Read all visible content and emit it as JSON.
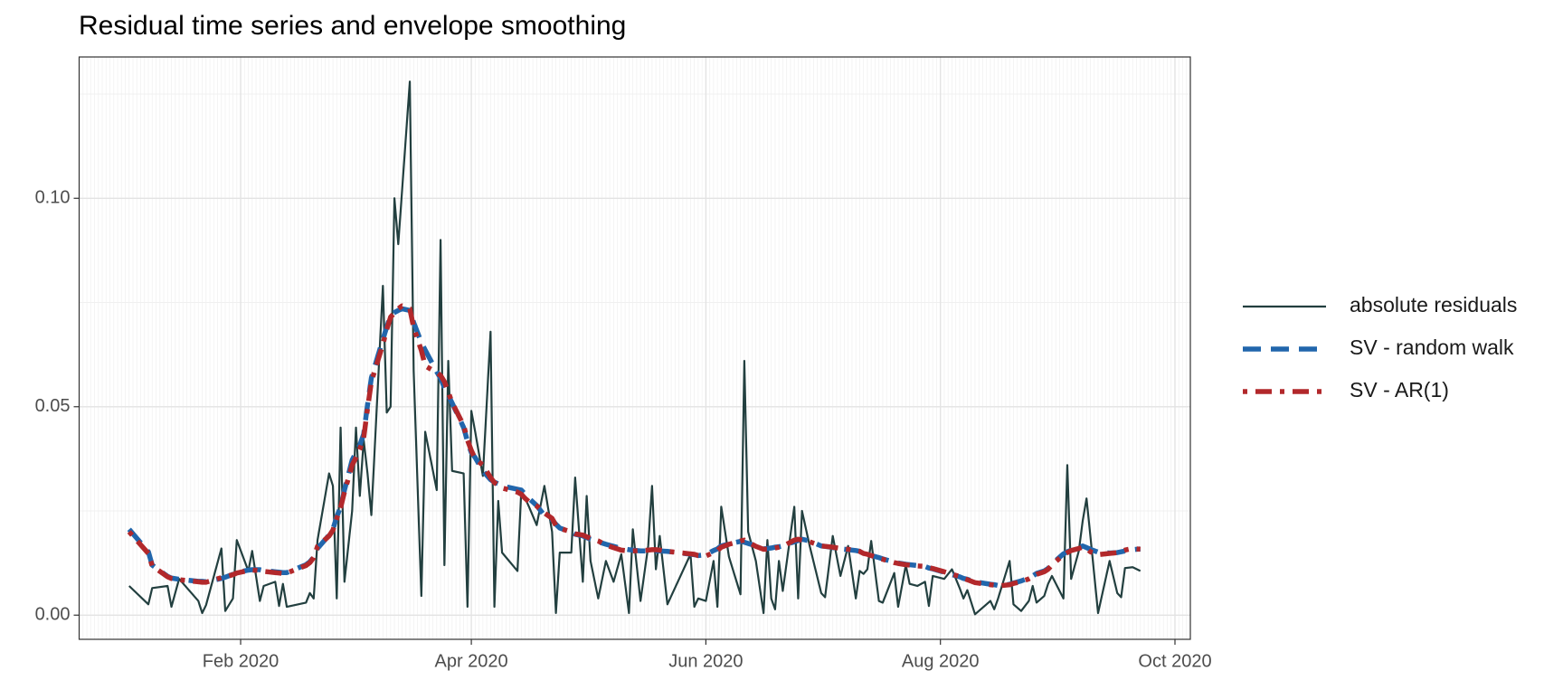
{
  "chart_data": {
    "type": "line",
    "title": "Residual time series and envelope smoothing",
    "x": [
      "2020-01-03",
      "2020-01-08",
      "2020-01-09",
      "2020-01-13",
      "2020-01-14",
      "2020-01-16",
      "2020-01-21",
      "2020-01-22",
      "2020-01-23",
      "2020-01-27",
      "2020-01-28",
      "2020-01-30",
      "2020-01-31",
      "2020-02-03",
      "2020-02-04",
      "2020-02-06",
      "2020-02-07",
      "2020-02-10",
      "2020-02-11",
      "2020-02-12",
      "2020-02-13",
      "2020-02-18",
      "2020-02-19",
      "2020-02-20",
      "2020-02-21",
      "2020-02-24",
      "2020-02-25",
      "2020-02-26",
      "2020-02-27",
      "2020-02-28",
      "2020-03-01",
      "2020-03-02",
      "2020-03-03",
      "2020-03-04",
      "2020-03-05",
      "2020-03-06",
      "2020-03-09",
      "2020-03-10",
      "2020-03-11",
      "2020-03-12",
      "2020-03-13",
      "2020-03-14",
      "2020-03-16",
      "2020-03-17",
      "2020-03-19",
      "2020-03-20",
      "2020-03-23",
      "2020-03-24",
      "2020-03-25",
      "2020-03-26",
      "2020-03-27",
      "2020-03-30",
      "2020-03-31",
      "2020-04-01",
      "2020-04-02",
      "2020-04-04",
      "2020-04-06",
      "2020-04-07",
      "2020-04-08",
      "2020-04-09",
      "2020-04-13",
      "2020-04-14",
      "2020-04-15",
      "2020-04-16",
      "2020-04-18",
      "2020-04-20",
      "2020-04-22",
      "2020-04-23",
      "2020-04-24",
      "2020-04-27",
      "2020-04-28",
      "2020-04-30",
      "2020-05-01",
      "2020-05-02",
      "2020-05-04",
      "2020-05-06",
      "2020-05-08",
      "2020-05-10",
      "2020-05-12",
      "2020-05-13",
      "2020-05-15",
      "2020-05-17",
      "2020-05-18",
      "2020-05-19",
      "2020-05-20",
      "2020-05-22",
      "2020-05-28",
      "2020-05-29",
      "2020-05-30",
      "2020-06-01",
      "2020-06-03",
      "2020-06-04",
      "2020-06-05",
      "2020-06-07",
      "2020-06-09",
      "2020-06-10",
      "2020-06-11",
      "2020-06-12",
      "2020-06-14",
      "2020-06-16",
      "2020-06-17",
      "2020-06-18",
      "2020-06-19",
      "2020-06-20",
      "2020-06-21",
      "2020-06-22",
      "2020-06-24",
      "2020-06-25",
      "2020-06-26",
      "2020-06-28",
      "2020-07-01",
      "2020-07-02",
      "2020-07-04",
      "2020-07-06",
      "2020-07-08",
      "2020-07-10",
      "2020-07-11",
      "2020-07-12",
      "2020-07-13",
      "2020-07-14",
      "2020-07-16",
      "2020-07-17",
      "2020-07-20",
      "2020-07-21",
      "2020-07-23",
      "2020-07-24",
      "2020-07-26",
      "2020-07-28",
      "2020-07-29",
      "2020-07-30",
      "2020-08-02",
      "2020-08-04",
      "2020-08-06",
      "2020-08-07",
      "2020-08-08",
      "2020-08-10",
      "2020-08-14",
      "2020-08-15",
      "2020-08-16",
      "2020-08-19",
      "2020-08-20",
      "2020-08-22",
      "2020-08-24",
      "2020-08-25",
      "2020-08-26",
      "2020-08-28",
      "2020-08-29",
      "2020-08-30",
      "2020-09-02",
      "2020-09-03",
      "2020-09-04",
      "2020-09-06",
      "2020-09-07",
      "2020-09-08",
      "2020-09-09",
      "2020-09-11",
      "2020-09-14",
      "2020-09-16",
      "2020-09-17",
      "2020-09-18",
      "2020-09-20",
      "2020-09-22"
    ],
    "series": [
      {
        "name": "absolute residuals",
        "color": "#223f3f",
        "linestyle": "solid",
        "values": [
          0.007,
          0.0026,
          0.0065,
          0.007,
          0.002,
          0.0087,
          0.0034,
          0.0005,
          0.0024,
          0.016,
          0.001,
          0.004,
          0.018,
          0.0106,
          0.0154,
          0.0034,
          0.007,
          0.008,
          0.0022,
          0.0075,
          0.002,
          0.003,
          0.0053,
          0.004,
          0.018,
          0.034,
          0.031,
          0.004,
          0.045,
          0.008,
          0.025,
          0.045,
          0.0286,
          0.042,
          0.034,
          0.024,
          0.079,
          0.0486,
          0.05,
          0.1,
          0.089,
          0.102,
          0.128,
          0.0586,
          0.0046,
          0.044,
          0.03,
          0.09,
          0.012,
          0.061,
          0.0346,
          0.034,
          0.002,
          0.049,
          0.044,
          0.0334,
          0.068,
          0.002,
          0.0274,
          0.015,
          0.0106,
          0.03,
          0.028,
          0.026,
          0.0216,
          0.031,
          0.02,
          0.0005,
          0.015,
          0.015,
          0.033,
          0.008,
          0.0286,
          0.013,
          0.004,
          0.013,
          0.008,
          0.0146,
          0.0005,
          0.0206,
          0.0034,
          0.0166,
          0.031,
          0.011,
          0.019,
          0.0026,
          0.0146,
          0.002,
          0.004,
          0.0034,
          0.013,
          0.002,
          0.026,
          0.014,
          0.008,
          0.005,
          0.061,
          0.02,
          0.013,
          0.0005,
          0.018,
          0.004,
          0.0014,
          0.013,
          0.0058,
          0.0125,
          0.026,
          0.004,
          0.025,
          0.0166,
          0.0053,
          0.0043,
          0.019,
          0.0094,
          0.0166,
          0.004,
          0.0106,
          0.0099,
          0.011,
          0.0178,
          0.0034,
          0.003,
          0.0101,
          0.002,
          0.012,
          0.0075,
          0.007,
          0.008,
          0.0022,
          0.0094,
          0.0087,
          0.011,
          0.0065,
          0.004,
          0.006,
          0.0002,
          0.0034,
          0.0014,
          0.004,
          0.013,
          0.0026,
          0.001,
          0.0034,
          0.007,
          0.003,
          0.0046,
          0.0075,
          0.0094,
          0.004,
          0.036,
          0.0087,
          0.0154,
          0.0226,
          0.028,
          0.019,
          0.0005,
          0.013,
          0.0053,
          0.0043,
          0.0113,
          0.0115,
          0.0106
        ]
      },
      {
        "name": "SV - random walk",
        "color": "#2166ac",
        "linestyle": "dashed",
        "values": [
          0.0206,
          0.0152,
          0.012,
          0.0093,
          0.0089,
          0.0086,
          0.0081,
          0.0081,
          0.008,
          0.0088,
          0.0091,
          0.0098,
          0.0102,
          0.0108,
          0.0109,
          0.0109,
          0.0107,
          0.0104,
          0.0103,
          0.0102,
          0.0102,
          0.0121,
          0.0128,
          0.0139,
          0.016,
          0.0192,
          0.0206,
          0.0236,
          0.026,
          0.03,
          0.0372,
          0.039,
          0.0408,
          0.0434,
          0.0504,
          0.0569,
          0.0662,
          0.0691,
          0.072,
          0.0726,
          0.0731,
          0.0735,
          0.0731,
          0.0702,
          0.0654,
          0.0636,
          0.0584,
          0.0568,
          0.0546,
          0.0527,
          0.0509,
          0.045,
          0.0417,
          0.039,
          0.0378,
          0.0346,
          0.0325,
          0.0319,
          0.0315,
          0.031,
          0.0302,
          0.03,
          0.029,
          0.028,
          0.0263,
          0.0239,
          0.0229,
          0.0218,
          0.0209,
          0.0199,
          0.0194,
          0.019,
          0.0186,
          0.0182,
          0.0176,
          0.017,
          0.0165,
          0.016,
          0.0157,
          0.0156,
          0.0154,
          0.0154,
          0.0154,
          0.0154,
          0.0154,
          0.0153,
          0.0146,
          0.0145,
          0.0143,
          0.0145,
          0.0155,
          0.0159,
          0.0166,
          0.0171,
          0.0175,
          0.0177,
          0.0175,
          0.0172,
          0.0166,
          0.0159,
          0.016,
          0.0161,
          0.0163,
          0.0164,
          0.0166,
          0.017,
          0.0176,
          0.0179,
          0.0182,
          0.0178,
          0.0166,
          0.0165,
          0.0162,
          0.0159,
          0.0157,
          0.0155,
          0.0153,
          0.0147,
          0.0145,
          0.0143,
          0.0138,
          0.0135,
          0.0127,
          0.0125,
          0.0122,
          0.0121,
          0.0119,
          0.0117,
          0.0113,
          0.0111,
          0.0103,
          0.0097,
          0.0092,
          0.0088,
          0.0086,
          0.008,
          0.0074,
          0.0073,
          0.0071,
          0.0074,
          0.0077,
          0.0082,
          0.0089,
          0.0094,
          0.01,
          0.0106,
          0.0112,
          0.0123,
          0.0147,
          0.0152,
          0.0156,
          0.0162,
          0.0166,
          0.0162,
          0.0158,
          0.0151,
          0.0149,
          0.015,
          0.0152,
          0.0154,
          0.0157,
          0.0159
        ]
      },
      {
        "name": "SV - AR(1)",
        "color": "#b2282b",
        "linestyle": "dotdash",
        "values": [
          0.02,
          0.0148,
          0.0118,
          0.0092,
          0.0088,
          0.0085,
          0.008,
          0.0079,
          0.0079,
          0.009,
          0.0092,
          0.0097,
          0.0101,
          0.0107,
          0.0108,
          0.0107,
          0.0105,
          0.0102,
          0.0101,
          0.01,
          0.0101,
          0.0119,
          0.0126,
          0.0138,
          0.0165,
          0.019,
          0.0204,
          0.0232,
          0.0258,
          0.0295,
          0.036,
          0.0378,
          0.0398,
          0.0425,
          0.0495,
          0.056,
          0.065,
          0.0685,
          0.0715,
          0.0725,
          0.0735,
          0.0742,
          0.0735,
          0.069,
          0.0635,
          0.0598,
          0.0582,
          0.0575,
          0.056,
          0.0535,
          0.051,
          0.0455,
          0.042,
          0.0395,
          0.0375,
          0.036,
          0.033,
          0.0318,
          0.0312,
          0.0305,
          0.0295,
          0.029,
          0.028,
          0.0272,
          0.0262,
          0.0245,
          0.0232,
          0.0215,
          0.0208,
          0.02,
          0.0195,
          0.0192,
          0.0188,
          0.0184,
          0.0178,
          0.0168,
          0.0162,
          0.0156,
          0.0154,
          0.0154,
          0.0155,
          0.0156,
          0.0157,
          0.0157,
          0.0156,
          0.0153,
          0.0147,
          0.0146,
          0.0143,
          0.0142,
          0.015,
          0.0155,
          0.0163,
          0.017,
          0.0175,
          0.0178,
          0.018,
          0.0175,
          0.0165,
          0.0158,
          0.0158,
          0.0159,
          0.0161,
          0.0163,
          0.0165,
          0.017,
          0.018,
          0.0182,
          0.018,
          0.0176,
          0.0166,
          0.0165,
          0.0163,
          0.016,
          0.0158,
          0.0155,
          0.0153,
          0.0148,
          0.0146,
          0.0143,
          0.0136,
          0.0134,
          0.0126,
          0.0124,
          0.0121,
          0.012,
          0.0118,
          0.0117,
          0.0114,
          0.0112,
          0.0104,
          0.0098,
          0.0093,
          0.0088,
          0.0085,
          0.0078,
          0.0073,
          0.0072,
          0.007,
          0.0073,
          0.0076,
          0.008,
          0.0087,
          0.0092,
          0.0098,
          0.0104,
          0.011,
          0.012,
          0.0145,
          0.015,
          0.0155,
          0.016,
          0.0163,
          0.016,
          0.0152,
          0.0145,
          0.0148,
          0.015,
          0.0153,
          0.0156,
          0.016,
          0.0158
        ]
      }
    ],
    "xlim": [
      "2019-12-21",
      "2020-10-05"
    ],
    "xticks": [
      {
        "value": "2020-02-01",
        "label": "Feb 2020"
      },
      {
        "value": "2020-04-01",
        "label": "Apr 2020"
      },
      {
        "value": "2020-06-01",
        "label": "Jun 2020"
      },
      {
        "value": "2020-08-01",
        "label": "Aug 2020"
      },
      {
        "value": "2020-10-01",
        "label": "Oct 2020"
      }
    ],
    "ylim": [
      -0.0058,
      0.1339
    ],
    "yticks": [
      {
        "value": 0,
        "label": "0.00"
      },
      {
        "value": 0.05,
        "label": "0.05"
      },
      {
        "value": 0.1,
        "label": "0.10"
      }
    ],
    "grid": true,
    "legend": "right"
  }
}
